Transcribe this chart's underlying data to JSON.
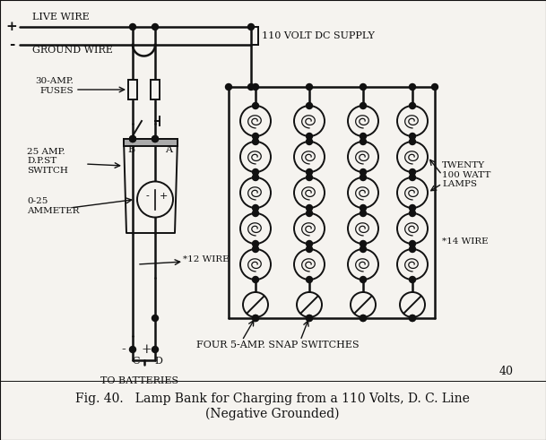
{
  "bg_color": "#f5f3ef",
  "line_color": "#111111",
  "title_line1": "Fig. 40.   Lamp Bank for Charging from a 110 Volts, D. C. Line",
  "title_line2": "(Negative Grounded)",
  "title_fontsize": 10,
  "figsize": [
    6.09,
    4.91
  ],
  "dpi": 100,
  "label_live_wire": "LIVE WIRE",
  "label_ground_wire": "GROUND WIRE",
  "label_supply": "} 110 VOLT DC SUPPLY",
  "label_fuses": "30-AMP.\nFUSES",
  "label_switch": "25 AMP.\nD.P.ST\nSWITCH",
  "label_ammeter": "0-25\nAMMETER",
  "label_wire12": "*12 WIRE",
  "label_lamps": "TWENTY\n100 WATT\nLAMPS",
  "label_wire14": "*14 WIRE",
  "label_switches": "FOUR 5-AMP. SNAP SWITCHES",
  "label_batteries": "TO BATTERIES",
  "label_page": "40"
}
